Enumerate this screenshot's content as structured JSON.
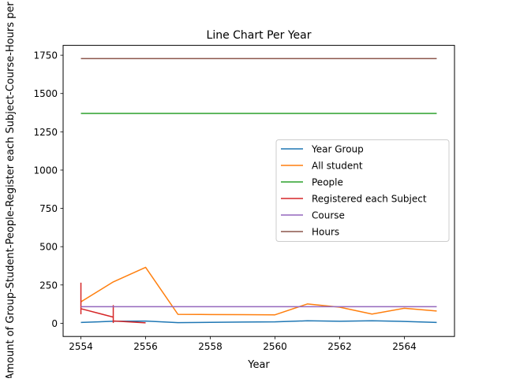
{
  "chart_data": {
    "type": "line",
    "title": "Line Chart Per Year",
    "xlabel": "Year",
    "ylabel": "Amount of Group-Student-People-Register each Subject-Course-Hours per",
    "xlim": [
      2553.45,
      2565.55
    ],
    "ylim": [
      -86.4,
      1814.4
    ],
    "xticks": [
      2554,
      2556,
      2558,
      2560,
      2562,
      2564
    ],
    "yticks": [
      0,
      250,
      500,
      750,
      1000,
      1250,
      1500,
      1750
    ],
    "grid": false,
    "legend_position": "center-right",
    "series": [
      {
        "name": "Year Group",
        "color": "#1f77b4",
        "x": [
          2554,
          2555,
          2556,
          2557,
          2558,
          2559,
          2560,
          2561,
          2562,
          2563,
          2564,
          2565
        ],
        "y": [
          5,
          13,
          14,
          4,
          6,
          8,
          9,
          16,
          13,
          16,
          12,
          5
        ]
      },
      {
        "name": "All student",
        "color": "#ff7f0e",
        "x": [
          2554,
          2555,
          2556,
          2557,
          2558,
          2559,
          2560,
          2561,
          2562,
          2563,
          2564,
          2565
        ],
        "y": [
          140,
          270,
          365,
          58,
          57,
          56,
          55,
          126,
          105,
          60,
          98,
          80
        ]
      },
      {
        "name": "People",
        "color": "#2ca02c",
        "x": [
          2554,
          2555,
          2556,
          2557,
          2558,
          2559,
          2560,
          2561,
          2562,
          2563,
          2564,
          2565
        ],
        "y": [
          1370,
          1370,
          1370,
          1370,
          1370,
          1370,
          1370,
          1370,
          1370,
          1370,
          1370,
          1370
        ]
      },
      {
        "name": "Registered each Subject",
        "color": "#d62728",
        "x": [
          2554,
          2554,
          2554,
          2554,
          2554,
          2555,
          2555,
          2555,
          2555,
          2556
        ],
        "y": [
          265,
          62,
          110,
          75,
          95,
          40,
          115,
          5,
          15,
          3
        ]
      },
      {
        "name": "Course",
        "color": "#9467bd",
        "x": [
          2554,
          2555,
          2556,
          2557,
          2558,
          2559,
          2560,
          2561,
          2562,
          2563,
          2564,
          2565
        ],
        "y": [
          108,
          108,
          108,
          108,
          108,
          108,
          108,
          108,
          108,
          108,
          108,
          108
        ]
      },
      {
        "name": "Hours",
        "color": "#8c564b",
        "x": [
          2554,
          2555,
          2556,
          2557,
          2558,
          2559,
          2560,
          2561,
          2562,
          2563,
          2564,
          2565
        ],
        "y": [
          1728,
          1728,
          1728,
          1728,
          1728,
          1728,
          1728,
          1728,
          1728,
          1728,
          1728,
          1728
        ]
      }
    ]
  }
}
